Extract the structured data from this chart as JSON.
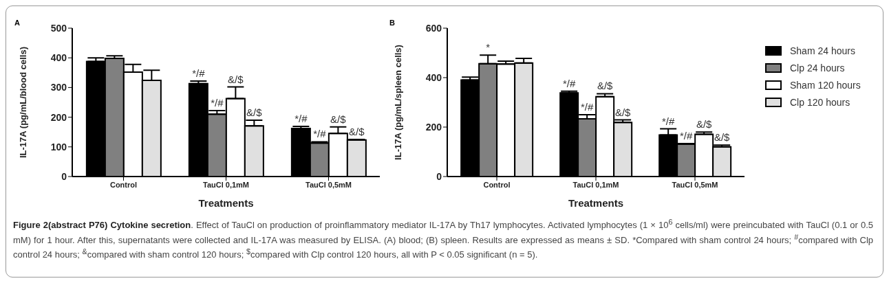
{
  "chart_data": [
    {
      "type": "bar",
      "title": "A",
      "xlabel": "Treatments",
      "ylabel": "IL-17A (pg/mL/blood cells)",
      "categories": [
        "Control",
        "TauCl 0,1mM",
        "TauCl 0,5mM"
      ],
      "ylim": [
        0,
        500
      ],
      "yticks": [
        0,
        100,
        200,
        300,
        400,
        500
      ],
      "grid": false,
      "legend": false,
      "series": [
        {
          "color": "#000000",
          "values": [
            388,
            313,
            162
          ],
          "errors": [
            12,
            9,
            7
          ],
          "value_labels": [
            null,
            "*/#",
            "*/#"
          ]
        },
        {
          "color": "#808080",
          "values": [
            398,
            210,
            113
          ],
          "errors": [
            9,
            12,
            4
          ],
          "value_labels": [
            null,
            "*/#",
            "*/#"
          ]
        },
        {
          "color": "#ffffff",
          "values": [
            352,
            263,
            145
          ],
          "errors": [
            26,
            39,
            22
          ],
          "value_labels": [
            null,
            "&/$",
            "&/$"
          ]
        },
        {
          "color": "#e0e0e0",
          "values": [
            324,
            171,
            123
          ],
          "errors": [
            34,
            19,
            2
          ],
          "value_labels": [
            null,
            "&/$",
            "&/$"
          ]
        }
      ]
    },
    {
      "type": "bar",
      "title": "B",
      "xlabel": "Treatments",
      "ylabel": "IL-17A (pg/mL/spleen cells)",
      "categories": [
        "Control",
        "TauCl 0,1mM",
        "TauCl 0,5mM"
      ],
      "ylim": [
        0,
        600
      ],
      "yticks": [
        0,
        200,
        400,
        600
      ],
      "grid": false,
      "legend": "right",
      "series": [
        {
          "name": "Sham 24 hours",
          "color": "#000000",
          "values": [
            390,
            338,
            168
          ],
          "errors": [
            12,
            7,
            25
          ],
          "value_labels": [
            null,
            "*/#",
            "*/#"
          ]
        },
        {
          "name": "Clp 24 hours",
          "color": "#808080",
          "values": [
            456,
            233,
            131
          ],
          "errors": [
            35,
            17,
            2
          ],
          "value_labels": [
            "*",
            "*/#",
            "*/#"
          ]
        },
        {
          "name": "Sham 120 hours",
          "color": "#ffffff",
          "values": [
            455,
            323,
            171
          ],
          "errors": [
            12,
            12,
            9
          ],
          "value_labels": [
            null,
            "&/$",
            "&/$"
          ]
        },
        {
          "name": "Clp 120 hours",
          "color": "#e0e0e0",
          "values": [
            459,
            219,
            120
          ],
          "errors": [
            19,
            10,
            7
          ],
          "value_labels": [
            null,
            "&/$",
            "&/$"
          ]
        }
      ],
      "annotations": [
        "Figure 2(abstract P76) Cytokine secretion",
        ". Effect of TauCl on production of proinflammatory mediator IL-17A by Th17 lymphocytes. Activated lymphocytes (1 × 10$^{6}$ cells/ml) were preincubated with TauCl (0.1 or 0.5 mM) for 1 hour. After this, supernatants were collected and IL-17A was measured by ELISA. (A) blood; (B) spleen. Results are expressed as means ± SD. *Compared with sham control 24 hours; $^{#}$compared with Clp control 24 hours; $^{&}$compared with sham control 120 hours; $^{$}$compared with Clp control 120 hours, all with P < 0.05 significant (n = 5)."
      ]
    }
  ]
}
